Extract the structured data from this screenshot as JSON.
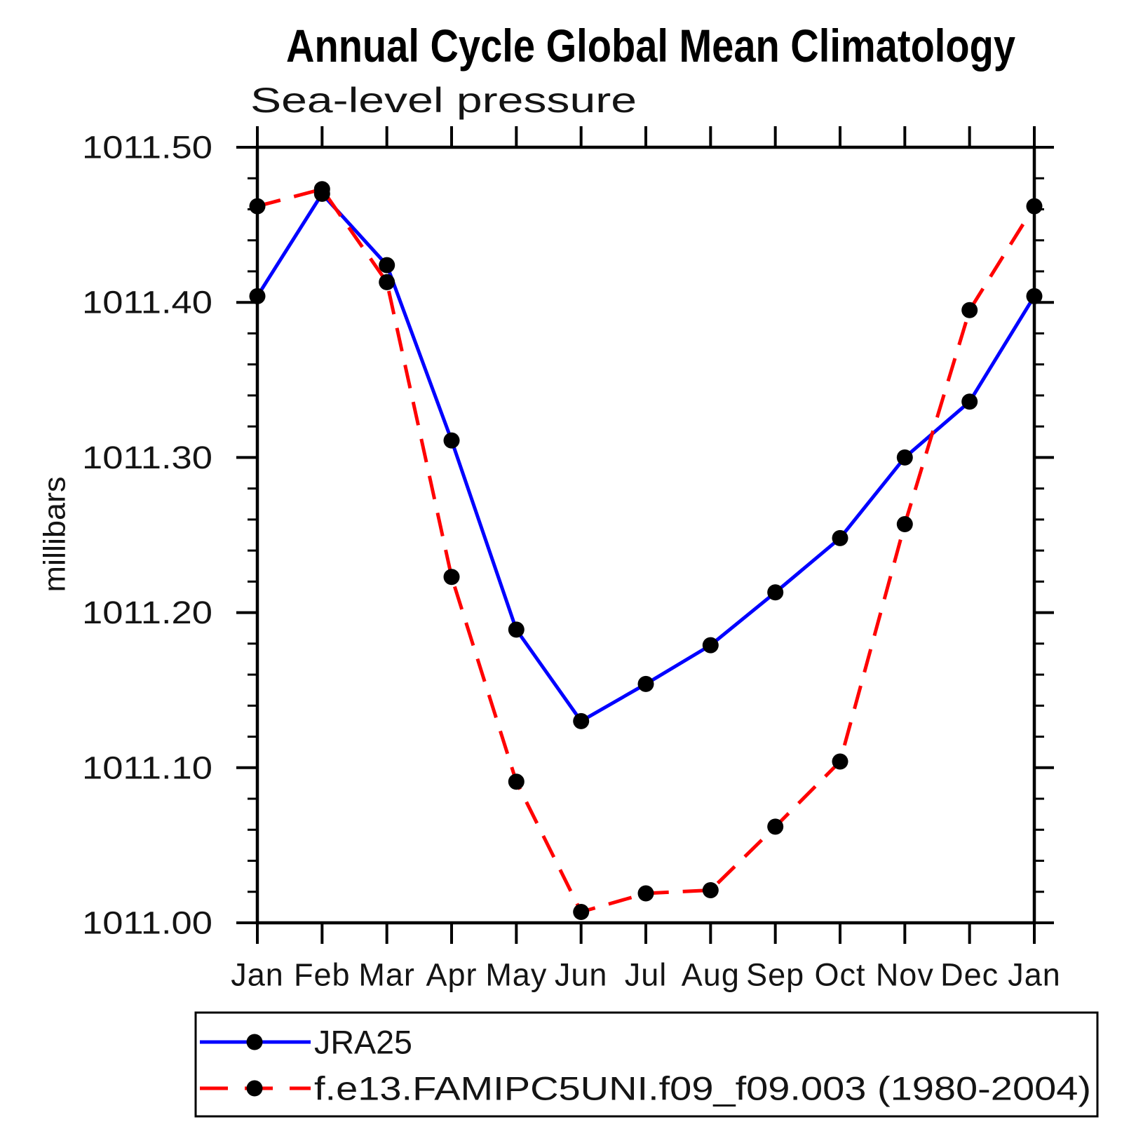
{
  "page": {
    "background": "#ffffff"
  },
  "chart_data": {
    "type": "line",
    "title": "Annual Cycle Global Mean Climatology",
    "subtitle": "Sea-level pressure",
    "xlabel": "",
    "ylabel": "millibars",
    "x_categories": [
      "Jan",
      "Feb",
      "Mar",
      "Apr",
      "May",
      "Jun",
      "Jul",
      "Aug",
      "Sep",
      "Oct",
      "Nov",
      "Dec",
      "Jan"
    ],
    "ylim": [
      1011.0,
      1011.5
    ],
    "y_major_step": 0.1,
    "y_minor_step": 0.02,
    "y_tick_labels": [
      "1011.00",
      "1011.10",
      "1011.20",
      "1011.30",
      "1011.40",
      "1011.50"
    ],
    "grid": false,
    "legend_position": "bottom-left-box",
    "axis_color": "#000000",
    "marker_shape": "filled-circle",
    "series": [
      {
        "name": "JRA25",
        "color": "#0000ff",
        "line_style": "solid",
        "marker": "filled-circle",
        "marker_color": "#000000",
        "values": [
          1011.404,
          1011.47,
          1011.424,
          1011.311,
          1011.189,
          1011.13,
          1011.154,
          1011.179,
          1011.213,
          1011.248,
          1011.3,
          1011.336,
          1011.404
        ]
      },
      {
        "name": "f.e13.FAMIPC5UNI.f09_f09.003 (1980-2004)",
        "color": "#ff0000",
        "line_style": "dashed",
        "marker": "filled-circle",
        "marker_color": "#000000",
        "values": [
          1011.462,
          1011.473,
          1011.413,
          1011.223,
          1011.091,
          1011.007,
          1011.019,
          1011.021,
          1011.062,
          1011.104,
          1011.257,
          1011.395,
          1011.462
        ]
      }
    ]
  }
}
